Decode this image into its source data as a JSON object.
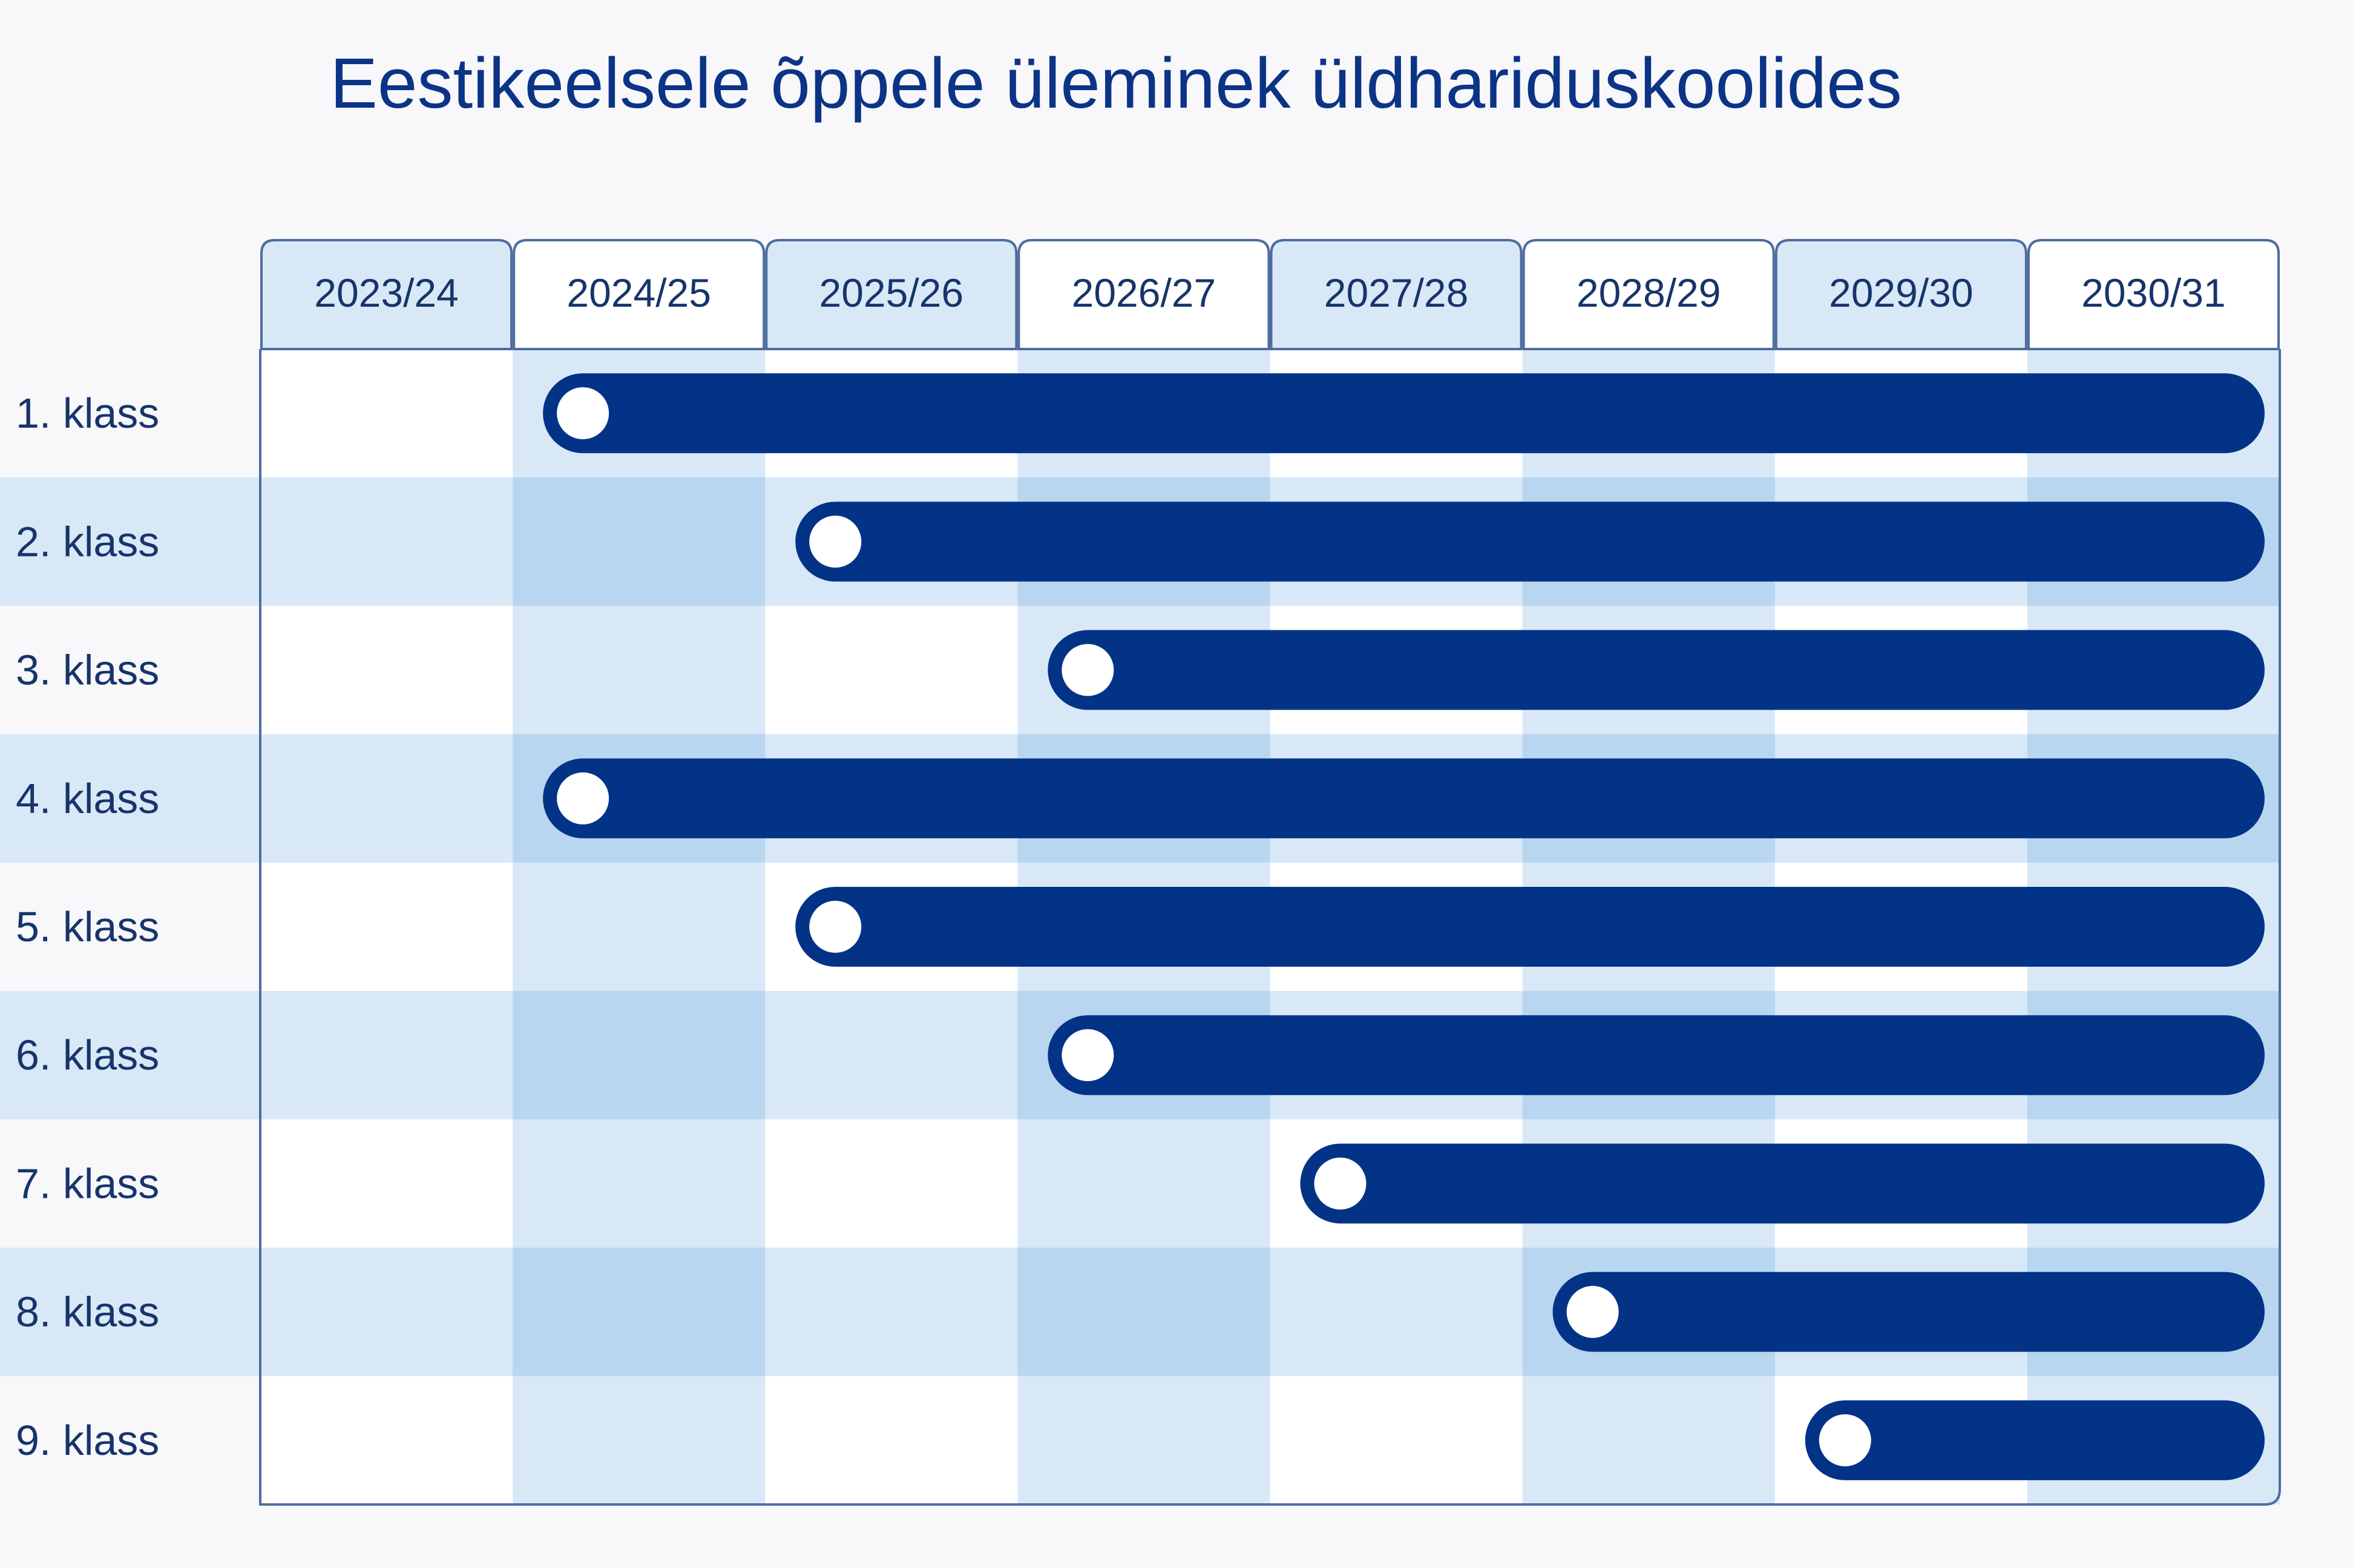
{
  "chart_data": {
    "type": "gantt",
    "title": "Eestikeelsele õppele üleminek üldhariduskoolides",
    "columns": [
      "2023/24",
      "2024/25",
      "2025/26",
      "2026/27",
      "2027/28",
      "2028/29",
      "2029/30",
      "2030/31"
    ],
    "rows": [
      {
        "label": "1. klass",
        "start": "2024/25",
        "end": "2030/31"
      },
      {
        "label": "2. klass",
        "start": "2025/26",
        "end": "2030/31"
      },
      {
        "label": "3. klass",
        "start": "2026/27",
        "end": "2030/31"
      },
      {
        "label": "4. klass",
        "start": "2024/25",
        "end": "2030/31"
      },
      {
        "label": "5. klass",
        "start": "2025/26",
        "end": "2030/31"
      },
      {
        "label": "6. klass",
        "start": "2026/27",
        "end": "2030/31"
      },
      {
        "label": "7. klass",
        "start": "2027/28",
        "end": "2030/31"
      },
      {
        "label": "8. klass",
        "start": "2028/29",
        "end": "2030/31"
      },
      {
        "label": "9. klass",
        "start": "2029/30",
        "end": "2030/31"
      }
    ],
    "colors": {
      "bar": "#023387",
      "title": "#0b3486",
      "text": "#17346b",
      "tab_filled": "#d8e8f7",
      "row_band": "#d8e8f7",
      "column_band": "#d8e8f7",
      "band_overlap": "#b8d6ef",
      "border": "#4d6d9f",
      "background": "#f8f7f9"
    }
  }
}
